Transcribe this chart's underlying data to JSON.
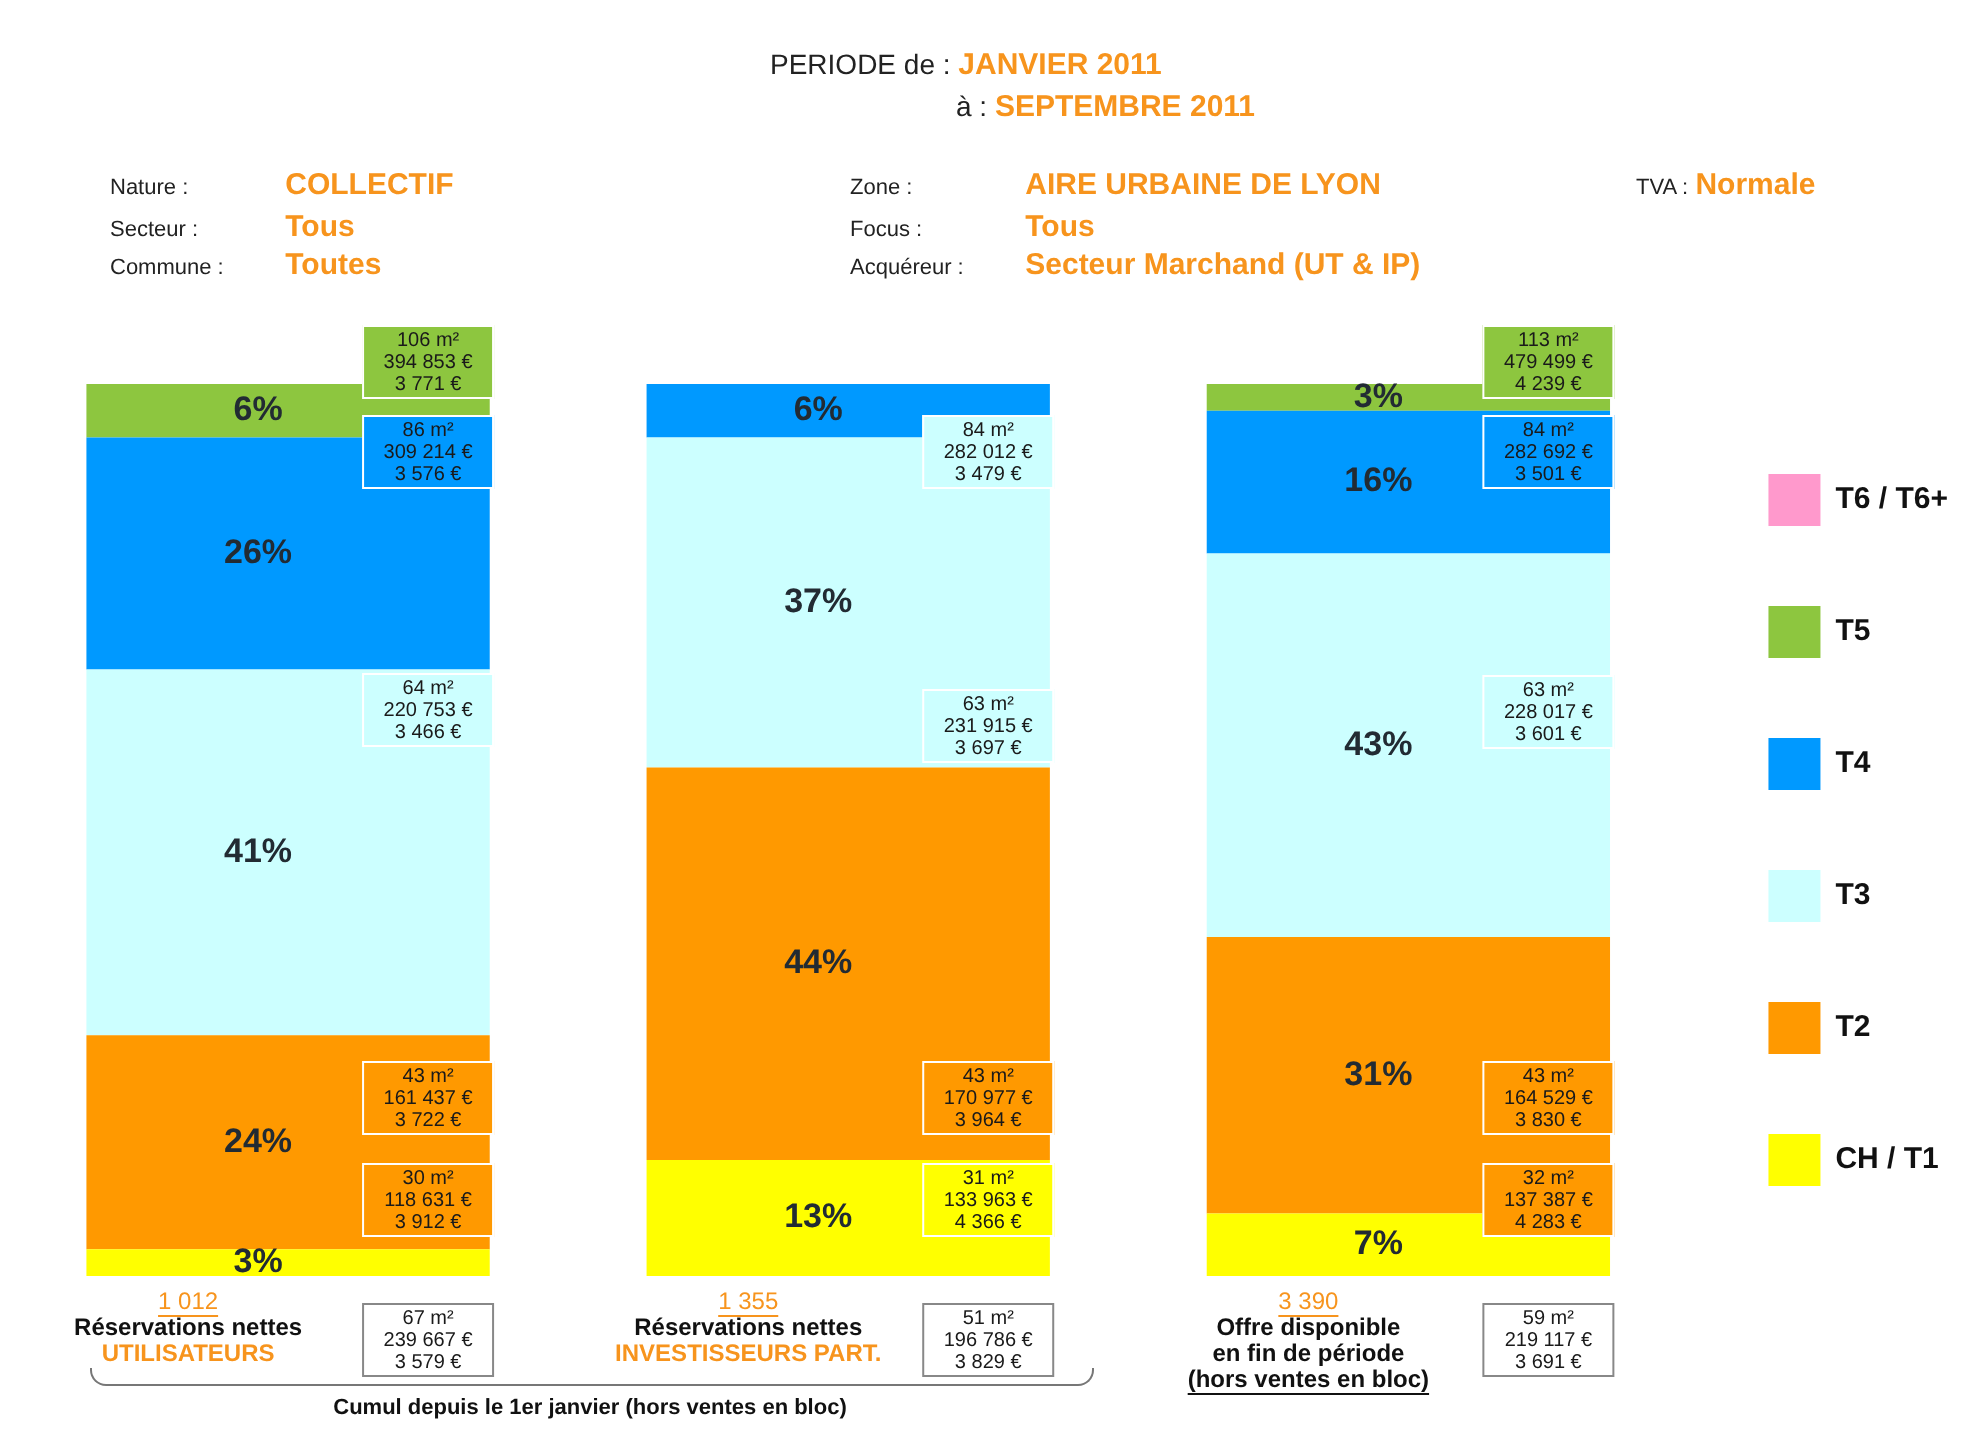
{
  "chart_data": {
    "type": "bar",
    "stacked": true,
    "title": "PERIODE de : JANVIER 2011",
    "subtitle": "à : SEPTEMBRE 2011",
    "categories": [
      "1 012\nRéservations nettes\nUTILISATEURS",
      "1 355\nRéservations nettes\nINVESTISSEURS PART.",
      "3 390\nOffre disponible\nen fin de période\n(hors ventes en bloc)"
    ],
    "ylim": [
      0,
      100
    ],
    "tick_labels": "x",
    "legend": "right",
    "series": [
      {
        "name": "CH / T1",
        "color": "#ffff00",
        "values": [
          3,
          13,
          7
        ],
        "value_labels": [
          "3%",
          "13%",
          "7%"
        ]
      },
      {
        "name": "T2",
        "color": "#ff9900",
        "values": [
          24,
          44,
          31
        ],
        "value_labels": [
          "24%",
          "44%",
          "31%"
        ]
      },
      {
        "name": "T3",
        "color": "#ccffff",
        "values": [
          41,
          37,
          43
        ],
        "value_labels": [
          "41%",
          "37%",
          "43%"
        ]
      },
      {
        "name": "T4",
        "color": "#0099ff",
        "values": [
          26,
          6,
          16
        ],
        "value_labels": [
          "26%",
          "6%",
          "16%"
        ]
      },
      {
        "name": "T5",
        "color": "#8dc63f",
        "values": [
          6,
          0,
          3
        ],
        "value_labels": [
          "6%",
          null,
          "3%"
        ]
      },
      {
        "name": "T6 / T6+",
        "color": "#ff99cc",
        "values": [
          0,
          0,
          0
        ],
        "value_labels": [
          null,
          null,
          null
        ]
      }
    ],
    "annotations": [
      "Nature : COLLECTIF",
      "Secteur : Tous",
      "Commune : Toutes",
      "Zone : AIRE URBAINE DE LYON",
      "Focus : Tous",
      "Acquéreur : Secteur Marchand (UT & IP)",
      "TVA : Normale",
      "106 m²\n394 853 €\n3 771 €",
      "86 m²\n309 214 €\n3 576 €",
      "64 m²\n220 753 €\n3 466 €",
      "43 m²\n161 437 €\n3 722 €",
      "30 m²\n118 631 €\n3 912 €",
      "67 m²\n239 667 €\n3 579 €",
      "84 m²\n282 012 €\n3 479 €",
      "63 m²\n231 915 €\n3 697 €",
      "43 m²\n170 977 €\n3 964 €",
      "31 m²\n133 963 €\n4 366 €",
      "51 m²\n196 786 €\n3 829 €",
      "113 m²\n479 499 €\n4 239 €",
      "84 m²\n282 692 €\n3 501 €",
      "63 m²\n228 017 €\n3 601 €",
      "43 m²\n164 529 €\n3 830 €",
      "32 m²\n137 387 €\n4 283 €",
      "59 m²\n219 117 €\n3 691 €",
      "Cumul depuis le 1er janvier (hors ventes en bloc)"
    ]
  }
}
